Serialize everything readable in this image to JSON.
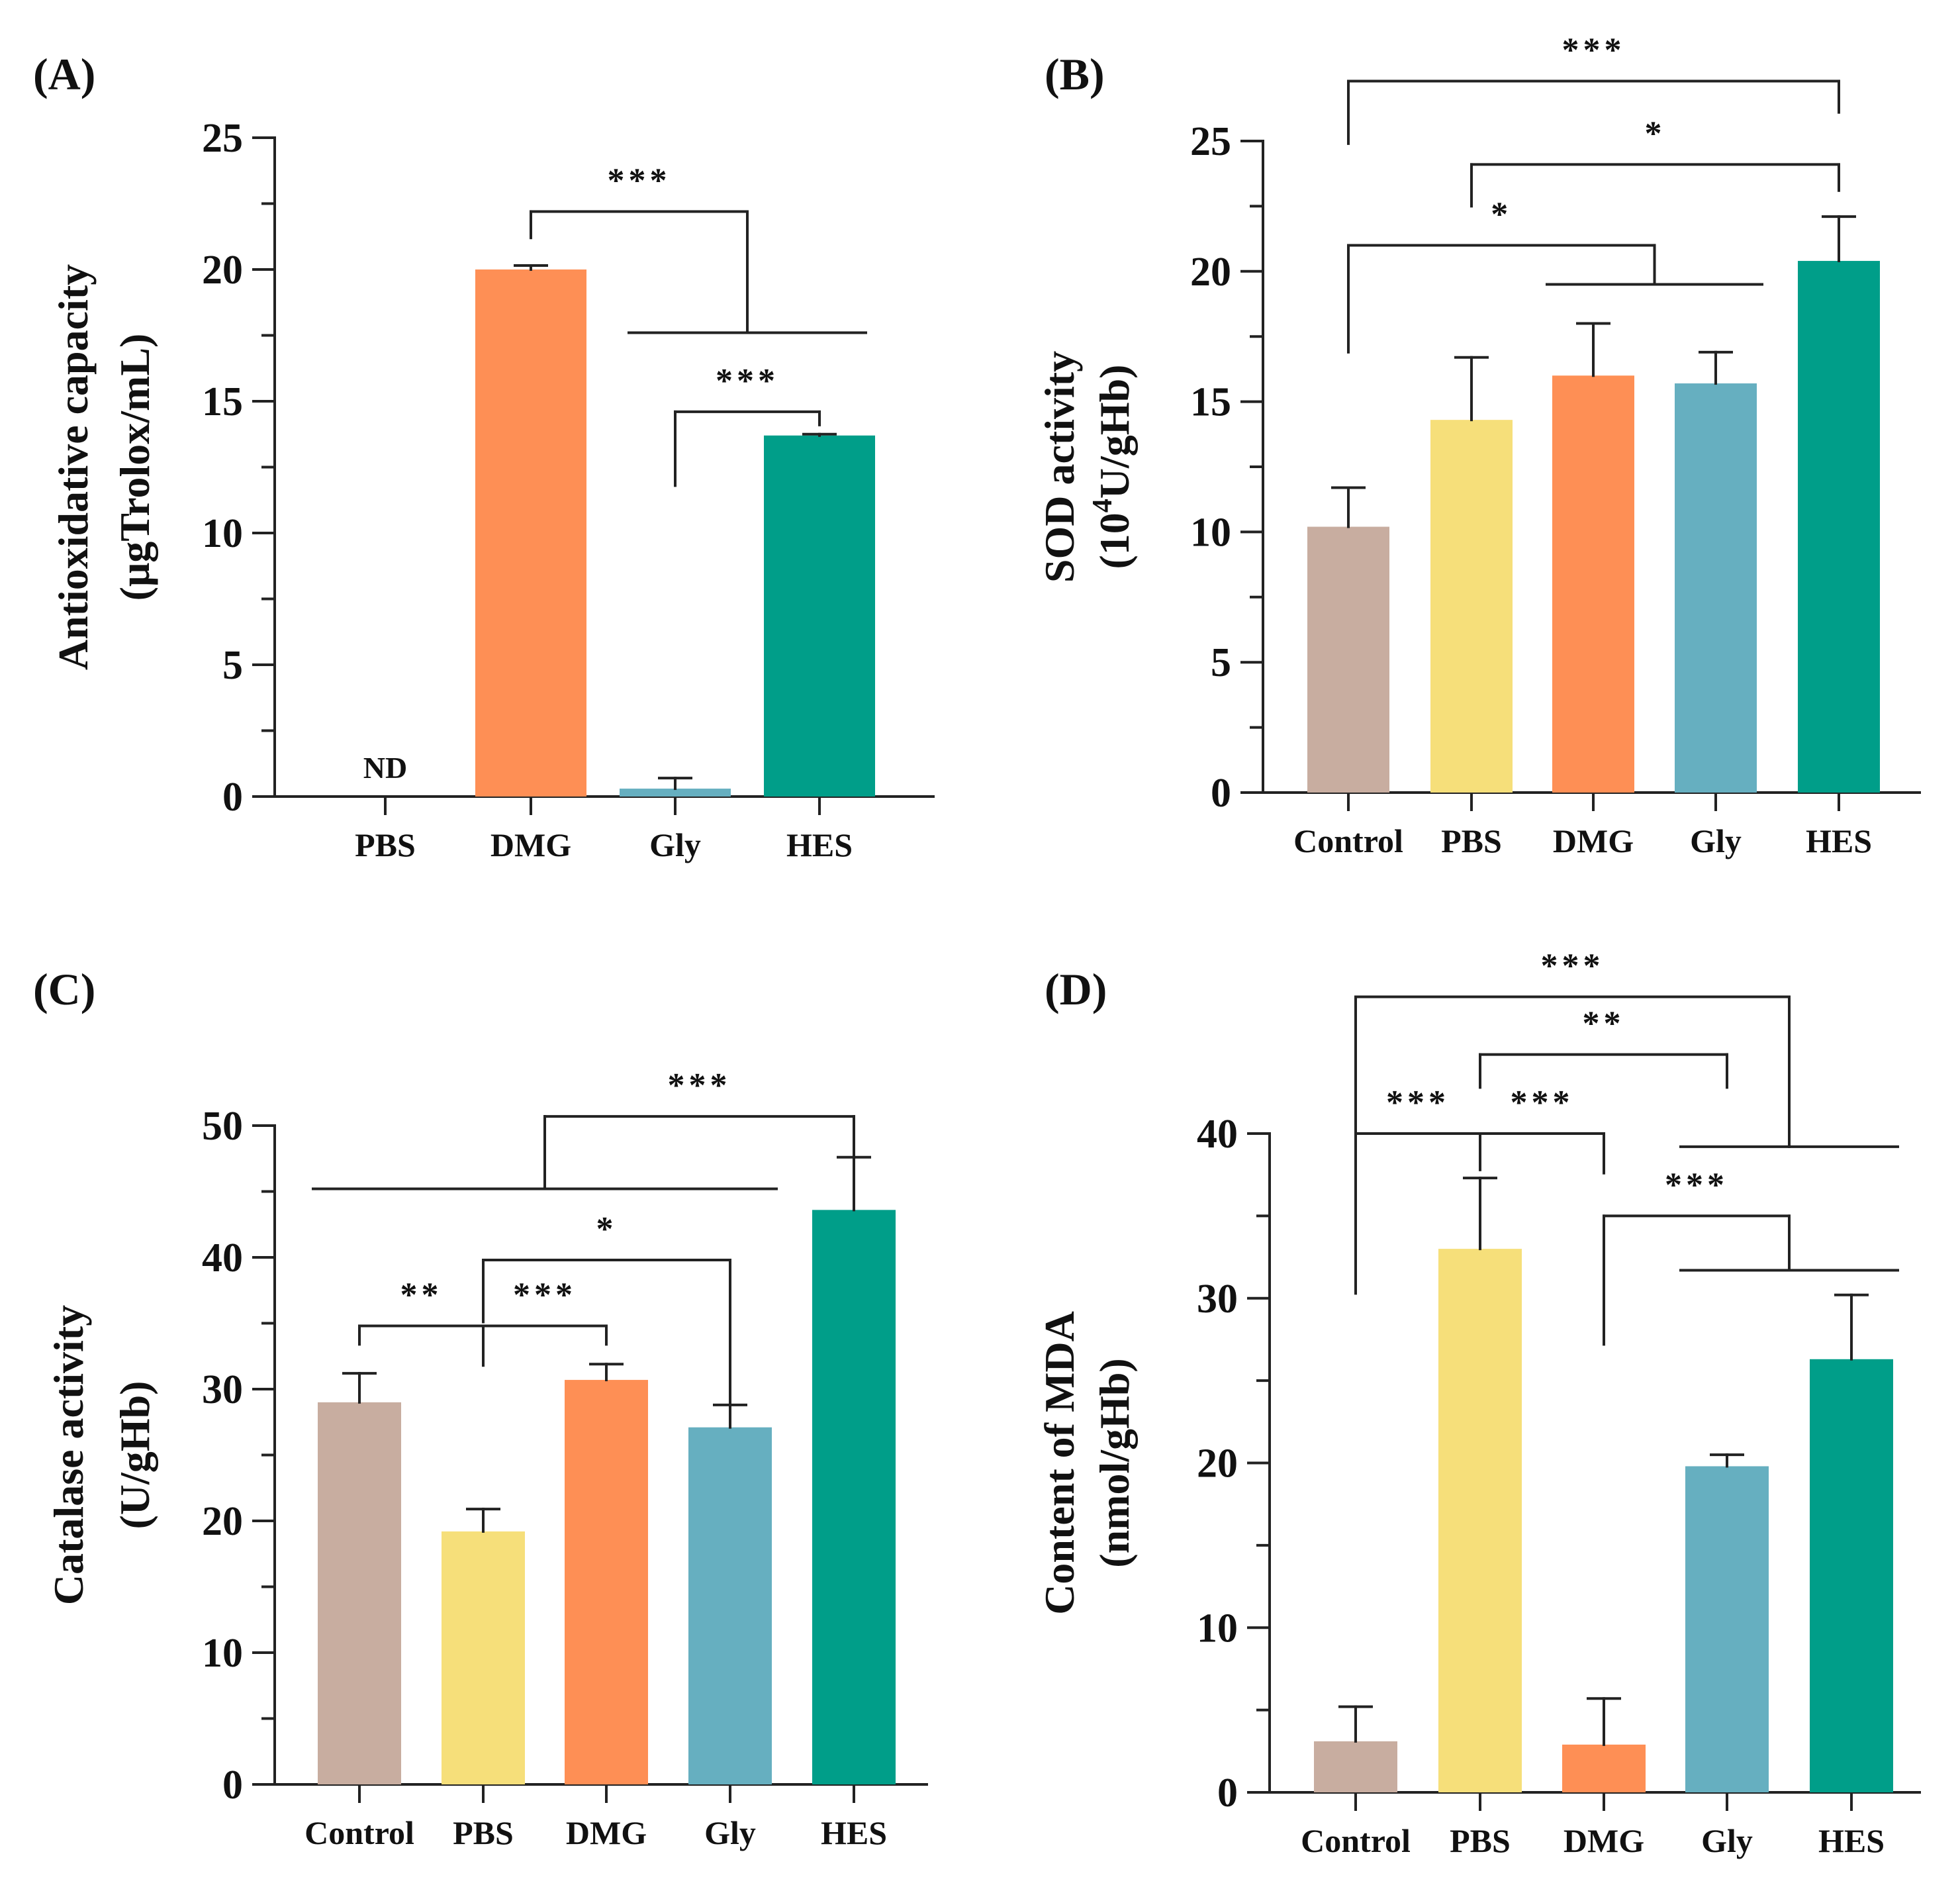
{
  "figure": {
    "colors": {
      "Control": "#c8ada0",
      "PBS": "#f6df7a",
      "DMG": "#fe8f55",
      "Gly": "#66afc0",
      "HES": "#009e89",
      "line": "#222222"
    }
  },
  "chart_data": [
    {
      "id": "A",
      "panel_label": "(A)",
      "type": "bar",
      "title": "",
      "ylabel_lines": [
        "Antioxidative capacity",
        "(μgTrolox/mL)"
      ],
      "xlabel": "",
      "categories": [
        "PBS",
        "DMG",
        "Gly",
        "HES"
      ],
      "values": [
        0,
        20.0,
        0.3,
        13.7
      ],
      "errors": [
        0,
        0.15,
        0.4,
        0.05
      ],
      "ylim": [
        0,
        25
      ],
      "yticks": [
        0,
        5,
        10,
        15,
        20,
        25
      ],
      "yminor_step": 2.5,
      "annotations": [
        {
          "category": "PBS",
          "text": "ND"
        }
      ],
      "significance": [
        {
          "text": "***",
          "levels": [
            22.2,
            17.6
          ],
          "x1": {
            "cat": "DMG"
          },
          "x2": {
            "from": "Gly",
            "to": "HES"
          },
          "h1": 21.2,
          "h2": 18.1
        },
        {
          "text": "***",
          "levels": [
            14.6
          ],
          "x1": {
            "cat": "Gly"
          },
          "x2": {
            "cat": "HES"
          },
          "h1": 11.8,
          "h2": 14.1
        }
      ]
    },
    {
      "id": "B",
      "panel_label": "(B)",
      "type": "bar",
      "title": "",
      "ylabel_lines": [
        "SOD activity",
        "(10^4U/gHb)"
      ],
      "xlabel": "",
      "categories": [
        "Control",
        "PBS",
        "DMG",
        "Gly",
        "HES"
      ],
      "values": [
        10.2,
        14.3,
        16.0,
        15.7,
        20.4
      ],
      "errors": [
        1.5,
        2.4,
        2.0,
        1.2,
        1.7
      ],
      "ylim": [
        0,
        25
      ],
      "yticks": [
        0,
        5,
        10,
        15,
        20,
        25
      ],
      "yminor_step": 2.5,
      "annotations": [],
      "significance": [
        {
          "text": "***",
          "levels": [
            27.3
          ],
          "x1": {
            "cat": "Control"
          },
          "x2": {
            "cat": "HES"
          },
          "h1": 24.9,
          "h2": 26.1
        },
        {
          "text": "*",
          "levels": [
            24.1
          ],
          "x1": {
            "cat": "PBS"
          },
          "x2": {
            "cat": "HES"
          },
          "h1": 22.5,
          "h2": 23.1
        },
        {
          "text": "*",
          "levels": [
            21.0,
            19.5
          ],
          "x1": {
            "cat": "Control"
          },
          "x2": {
            "from": "DMG",
            "to": "Gly"
          },
          "h1": 16.9,
          "h2": 19.9
        }
      ]
    },
    {
      "id": "C",
      "panel_label": "(C)",
      "type": "bar",
      "title": "",
      "ylabel_lines": [
        "Catalase activity",
        "(U/gHb)"
      ],
      "xlabel": "",
      "categories": [
        "Control",
        "PBS",
        "DMG",
        "Gly",
        "HES"
      ],
      "values": [
        29.0,
        19.2,
        30.7,
        27.1,
        43.6
      ],
      "errors": [
        2.2,
        1.7,
        1.2,
        1.7,
        4.0
      ],
      "ylim": [
        0,
        50
      ],
      "yticks": [
        0,
        10,
        20,
        30,
        40,
        50
      ],
      "yminor_step": 5,
      "annotations": [],
      "significance": [
        {
          "text": "***",
          "levels": [
            50.7,
            45.2
          ],
          "x1": {
            "from": "Control",
            "to": "Gly"
          },
          "x2": {
            "cat": "HES"
          },
          "h1": 47.8,
          "h2": 48.4
        },
        {
          "text": "*",
          "levels": [
            39.8
          ],
          "x1": {
            "cat": "PBS"
          },
          "x2": {
            "cat": "Gly"
          },
          "h1": 35.1,
          "h2": 28.1
        },
        {
          "text": "**",
          "levels": [
            34.8
          ],
          "x1": {
            "cat": "Control"
          },
          "x2": {
            "cat": "PBS"
          },
          "h1": 33.4,
          "h2": 31.8
        },
        {
          "text": "***",
          "levels": [
            34.8
          ],
          "x1": {
            "cat": "PBS"
          },
          "x2": {
            "cat": "DMG"
          },
          "h1": 31.8,
          "h2": 33.4
        }
      ]
    },
    {
      "id": "D",
      "panel_label": "(D)",
      "type": "bar",
      "title": "",
      "ylabel_lines": [
        "Content of MDA",
        "(nmol/gHb)"
      ],
      "xlabel": "",
      "categories": [
        "Control",
        "PBS",
        "DMG",
        "Gly",
        "HES"
      ],
      "values": [
        3.1,
        33.0,
        2.9,
        19.8,
        26.3
      ],
      "errors": [
        2.1,
        4.3,
        2.8,
        0.7,
        3.9
      ],
      "ylim": [
        0,
        40
      ],
      "yticks": [
        0,
        10,
        20,
        30,
        40
      ],
      "yminor_step": 5,
      "annotations": [],
      "significance": [
        {
          "text": "***",
          "levels": [
            48.3,
            39.2
          ],
          "x1": {
            "cat": "Control"
          },
          "x2": {
            "from": "Gly",
            "to": "HES"
          },
          "h1": 30.3,
          "h2": 39.3
        },
        {
          "text": "**",
          "levels": [
            44.8
          ],
          "x1": {
            "cat": "PBS"
          },
          "x2": {
            "cat": "Gly"
          },
          "h1": 42.8,
          "h2": 42.8
        },
        {
          "text": "***",
          "levels": [
            40.0
          ],
          "x1": {
            "cat": "Control"
          },
          "x2": {
            "cat": "PBS"
          },
          "h1": 30.3,
          "h2": 37.8
        },
        {
          "text": "***",
          "levels": [
            40.0
          ],
          "x1": {
            "cat": "PBS"
          },
          "x2": {
            "cat": "DMG"
          },
          "h1": 37.8,
          "h2": 37.6
        },
        {
          "text": "***",
          "levels": [
            35.0,
            31.7
          ],
          "x1": {
            "cat": "DMG"
          },
          "x2": {
            "from": "Gly",
            "to": "HES"
          },
          "h1": 27.2,
          "h2": 32.3
        }
      ]
    }
  ]
}
